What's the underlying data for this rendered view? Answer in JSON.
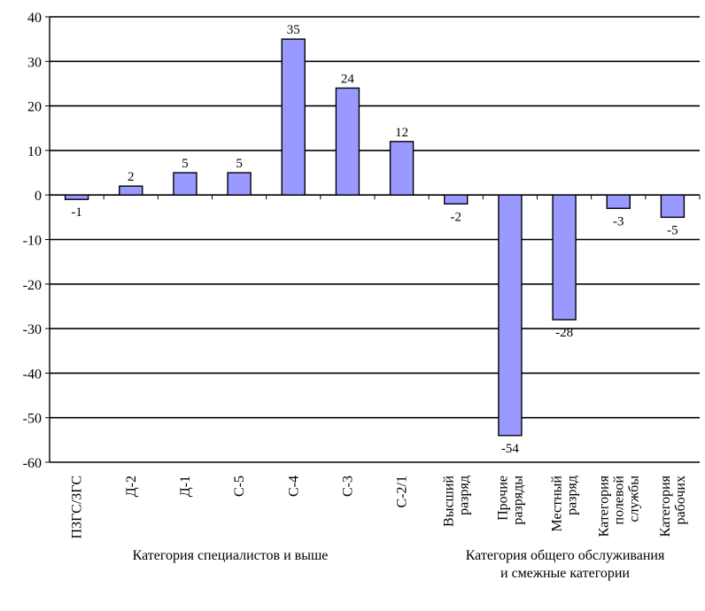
{
  "chart_data": {
    "type": "bar",
    "categories": [
      "ПЗГС/ЗГС",
      "Д-2",
      "Д-1",
      "С-5",
      "С-4",
      "С-3",
      "С-2/1",
      "Высший разряд",
      "Прочие разряды",
      "Местный разряд",
      "Категория полевой службы",
      "Категория рабочих"
    ],
    "category_lines": [
      [
        "ПЗГС/ЗГС"
      ],
      [
        "Д-2"
      ],
      [
        "Д-1"
      ],
      [
        "С-5"
      ],
      [
        "С-4"
      ],
      [
        "С-3"
      ],
      [
        "С-2/1"
      ],
      [
        "Высший",
        "разряд"
      ],
      [
        "Прочие",
        "разряды"
      ],
      [
        "Местный",
        "разряд"
      ],
      [
        "Категория",
        "полевой",
        "службы"
      ],
      [
        "Категория",
        "рабочих"
      ]
    ],
    "values": [
      -1,
      2,
      5,
      5,
      35,
      24,
      12,
      -2,
      -54,
      -28,
      -3,
      -5
    ],
    "data_labels": [
      "-1",
      "2",
      "5",
      "5",
      "35",
      "24",
      "12",
      "-2",
      "-54",
      "-28",
      "-3",
      "-5"
    ],
    "ylim": [
      -60,
      40
    ],
    "yticks": [
      40,
      30,
      20,
      10,
      0,
      -10,
      -20,
      -30,
      -40,
      -50,
      -60
    ],
    "grid": true,
    "bar_color": "#9999ff",
    "groups": [
      {
        "label": "Категория специалистов и выше"
      },
      {
        "label_lines": [
          "Категория общего обслуживания",
          "и смежные категории"
        ]
      }
    ]
  }
}
